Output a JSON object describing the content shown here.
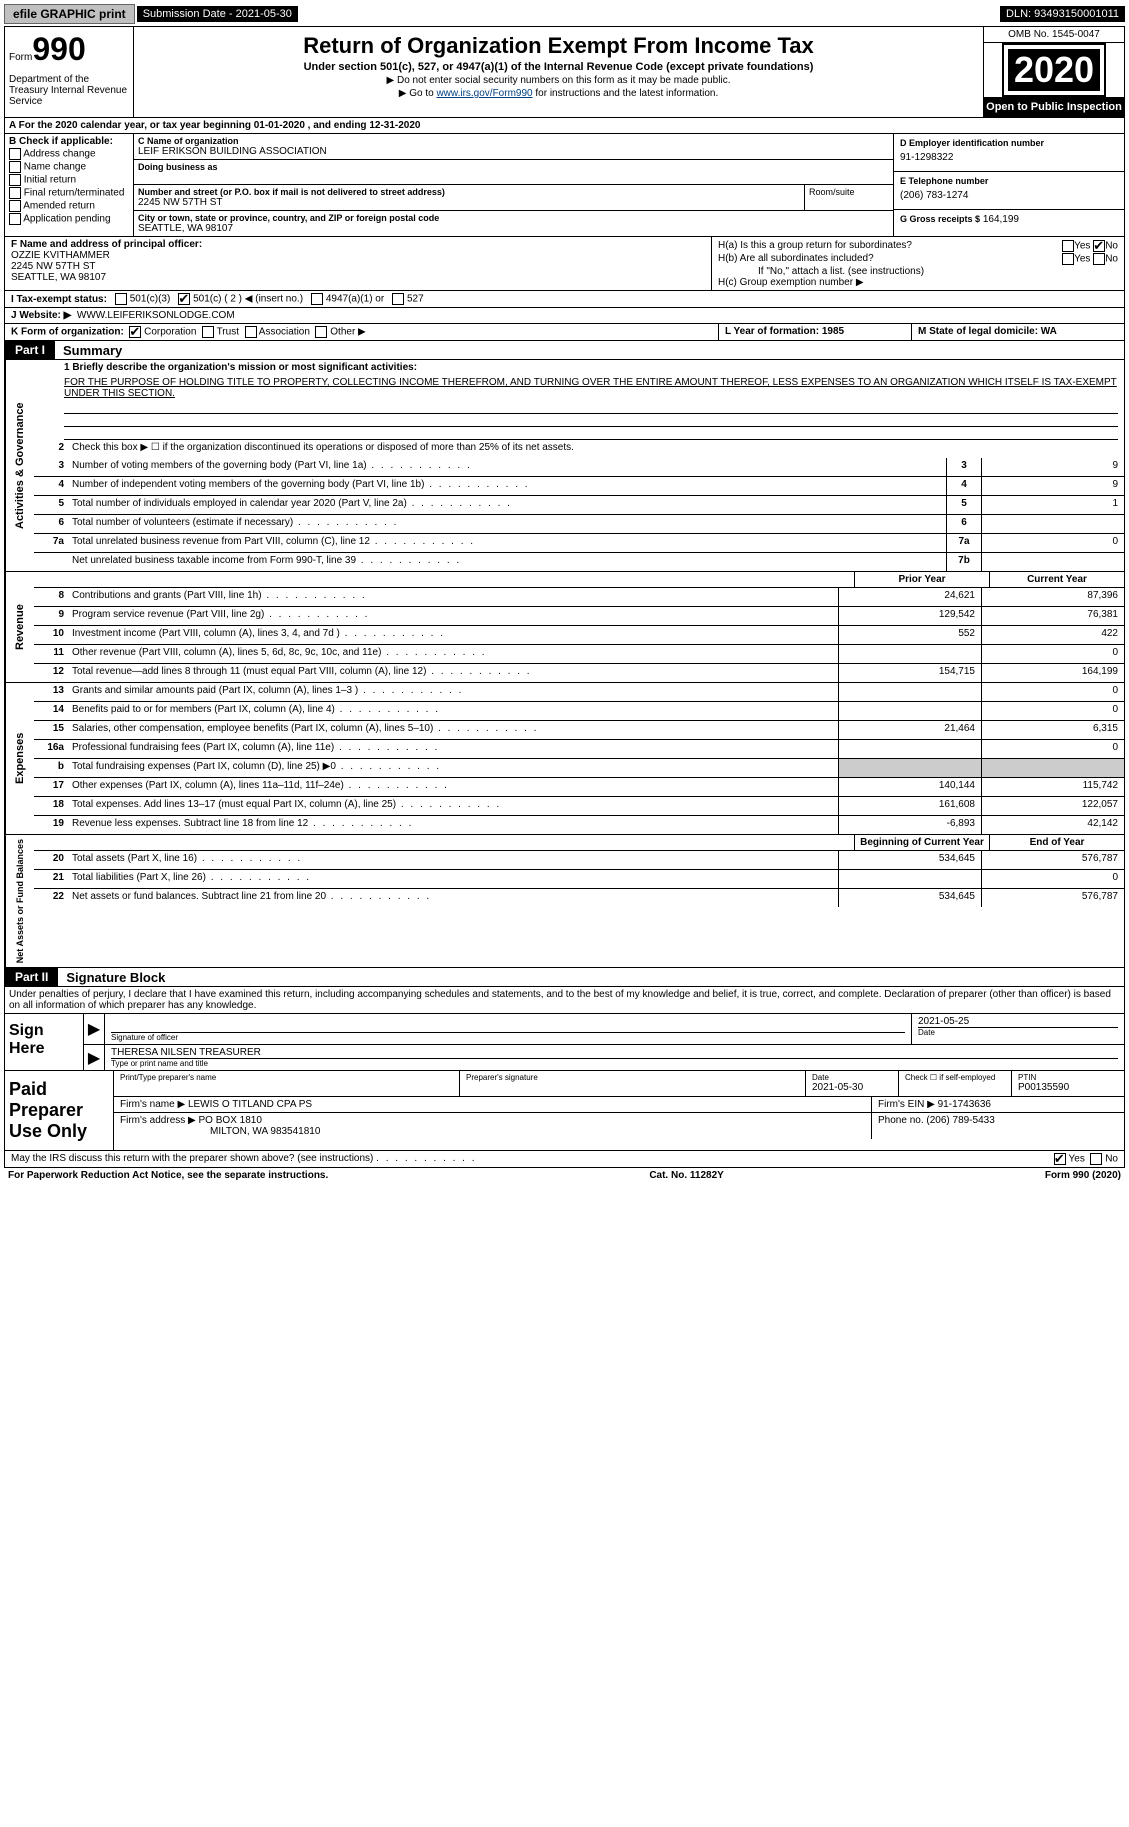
{
  "topbar": {
    "efile": "efile GRAPHIC print",
    "submission_label": "Submission Date - 2021-05-30",
    "dln": "DLN: 93493150001011"
  },
  "header": {
    "form_prefix": "Form",
    "form_number": "990",
    "dept": "Department of the Treasury\nInternal Revenue Service",
    "title": "Return of Organization Exempt From Income Tax",
    "subtitle": "Under section 501(c), 527, or 4947(a)(1) of the Internal Revenue Code (except private foundations)",
    "note1": "▶ Do not enter social security numbers on this form as it may be made public.",
    "note2_pre": "▶ Go to ",
    "note2_link": "www.irs.gov/Form990",
    "note2_post": " for instructions and the latest information.",
    "omb": "OMB No. 1545-0047",
    "year": "2020",
    "open_public": "Open to Public Inspection"
  },
  "section_a": "A For the 2020 calendar year, or tax year beginning 01-01-2020   , and ending 12-31-2020",
  "col_b": {
    "label": "B Check if applicable:",
    "items": [
      "Address change",
      "Name change",
      "Initial return",
      "Final return/terminated",
      "Amended return",
      "Application pending"
    ]
  },
  "col_c": {
    "name_lbl": "C Name of organization",
    "name": "LEIF ERIKSON BUILDING ASSOCIATION",
    "dba_lbl": "Doing business as",
    "street_lbl": "Number and street (or P.O. box if mail is not delivered to street address)",
    "street": "2245 NW 57TH ST",
    "room_lbl": "Room/suite",
    "city_lbl": "City or town, state or province, country, and ZIP or foreign postal code",
    "city": "SEATTLE, WA  98107"
  },
  "col_d": {
    "lbl": "D Employer identification number",
    "val": "91-1298322"
  },
  "col_e": {
    "lbl": "E Telephone number",
    "val": "(206) 783-1274"
  },
  "col_g": {
    "lbl": "G Gross receipts $",
    "val": "164,199"
  },
  "col_f": {
    "lbl": "F Name and address of principal officer:",
    "lines": [
      "OZZIE KVITHAMMER",
      "2245 NW 57TH ST",
      "SEATTLE, WA  98107"
    ]
  },
  "col_h": {
    "a": "H(a)  Is this a group return for subordinates?",
    "b": "H(b)  Are all subordinates included?",
    "b_note": "If \"No,\" attach a list. (see instructions)",
    "c": "H(c)  Group exemption number ▶"
  },
  "row_i": {
    "lbl": "I   Tax-exempt status:",
    "opts": [
      "501(c)(3)",
      "501(c) ( 2 ) ◀ (insert no.)",
      "4947(a)(1) or",
      "527"
    ]
  },
  "row_j": {
    "lbl": "J   Website: ▶",
    "val": "WWW.LEIFERIKSONLODGE.COM"
  },
  "row_k": {
    "lbl": "K Form of organization:",
    "opts": [
      "Corporation",
      "Trust",
      "Association",
      "Other ▶"
    ]
  },
  "row_l": "L Year of formation: 1985",
  "row_m": "M State of legal domicile: WA",
  "parts": {
    "p1": "Part I",
    "p1_title": "Summary",
    "p2": "Part II",
    "p2_title": "Signature Block"
  },
  "mission": {
    "lbl": "1   Briefly describe the organization's mission or most significant activities:",
    "text": "FOR THE PURPOSE OF HOLDING TITLE TO PROPERTY, COLLECTING INCOME THEREFROM, AND TURNING OVER THE ENTIRE AMOUNT THEREOF, LESS EXPENSES TO AN ORGANIZATION WHICH ITSELF IS TAX-EXEMPT UNDER THIS SECTION."
  },
  "line2": "Check this box ▶ ☐  if the organization discontinued its operations or disposed of more than 25% of its net assets.",
  "side_labels": {
    "gov": "Activities & Governance",
    "rev": "Revenue",
    "exp": "Expenses",
    "net": "Net Assets or Fund Balances"
  },
  "gov_lines": [
    {
      "n": "3",
      "d": "Number of voting members of the governing body (Part VI, line 1a)",
      "box": "3",
      "v": "9"
    },
    {
      "n": "4",
      "d": "Number of independent voting members of the governing body (Part VI, line 1b)",
      "box": "4",
      "v": "9"
    },
    {
      "n": "5",
      "d": "Total number of individuals employed in calendar year 2020 (Part V, line 2a)",
      "box": "5",
      "v": "1"
    },
    {
      "n": "6",
      "d": "Total number of volunteers (estimate if necessary)",
      "box": "6",
      "v": ""
    },
    {
      "n": "7a",
      "d": "Total unrelated business revenue from Part VIII, column (C), line 12",
      "box": "7a",
      "v": "0"
    },
    {
      "n": "",
      "d": "Net unrelated business taxable income from Form 990-T, line 39",
      "box": "7b",
      "v": ""
    }
  ],
  "col_hdr": {
    "py": "Prior Year",
    "cy": "Current Year",
    "by": "Beginning of Current Year",
    "ey": "End of Year"
  },
  "rev_lines": [
    {
      "n": "8",
      "d": "Contributions and grants (Part VIII, line 1h)",
      "py": "24,621",
      "cy": "87,396"
    },
    {
      "n": "9",
      "d": "Program service revenue (Part VIII, line 2g)",
      "py": "129,542",
      "cy": "76,381"
    },
    {
      "n": "10",
      "d": "Investment income (Part VIII, column (A), lines 3, 4, and 7d )",
      "py": "552",
      "cy": "422"
    },
    {
      "n": "11",
      "d": "Other revenue (Part VIII, column (A), lines 5, 6d, 8c, 9c, 10c, and 11e)",
      "py": "",
      "cy": "0"
    },
    {
      "n": "12",
      "d": "Total revenue—add lines 8 through 11 (must equal Part VIII, column (A), line 12)",
      "py": "154,715",
      "cy": "164,199"
    }
  ],
  "exp_lines": [
    {
      "n": "13",
      "d": "Grants and similar amounts paid (Part IX, column (A), lines 1–3 )",
      "py": "",
      "cy": "0"
    },
    {
      "n": "14",
      "d": "Benefits paid to or for members (Part IX, column (A), line 4)",
      "py": "",
      "cy": "0"
    },
    {
      "n": "15",
      "d": "Salaries, other compensation, employee benefits (Part IX, column (A), lines 5–10)",
      "py": "21,464",
      "cy": "6,315"
    },
    {
      "n": "16a",
      "d": "Professional fundraising fees (Part IX, column (A), line 11e)",
      "py": "",
      "cy": "0"
    },
    {
      "n": "b",
      "d": "Total fundraising expenses (Part IX, column (D), line 25) ▶0",
      "py": "SHADE",
      "cy": "SHADE"
    },
    {
      "n": "17",
      "d": "Other expenses (Part IX, column (A), lines 11a–11d, 11f–24e)",
      "py": "140,144",
      "cy": "115,742"
    },
    {
      "n": "18",
      "d": "Total expenses. Add lines 13–17 (must equal Part IX, column (A), line 25)",
      "py": "161,608",
      "cy": "122,057"
    },
    {
      "n": "19",
      "d": "Revenue less expenses. Subtract line 18 from line 12",
      "py": "-6,893",
      "cy": "42,142"
    }
  ],
  "net_lines": [
    {
      "n": "20",
      "d": "Total assets (Part X, line 16)",
      "py": "534,645",
      "cy": "576,787"
    },
    {
      "n": "21",
      "d": "Total liabilities (Part X, line 26)",
      "py": "",
      "cy": "0"
    },
    {
      "n": "22",
      "d": "Net assets or fund balances. Subtract line 21 from line 20",
      "py": "534,645",
      "cy": "576,787"
    }
  ],
  "sig_intro": "Under penalties of perjury, I declare that I have examined this return, including accompanying schedules and statements, and to the best of my knowledge and belief, it is true, correct, and complete. Declaration of preparer (other than officer) is based on all information of which preparer has any knowledge.",
  "sign": {
    "left": "Sign Here",
    "sig_lbl": "Signature of officer",
    "date": "2021-05-25",
    "date_lbl": "Date",
    "name": "THERESA NILSEN  TREASURER",
    "name_lbl": "Type or print name and title"
  },
  "prep": {
    "left": "Paid Preparer Use Only",
    "name_lbl": "Print/Type preparer's name",
    "sig_lbl": "Preparer's signature",
    "date_lbl": "Date",
    "date": "2021-05-30",
    "check_lbl": "Check ☐ if self-employed",
    "ptin_lbl": "PTIN",
    "ptin": "P00135590",
    "firm_name_lbl": "Firm's name    ▶",
    "firm_name": "LEWIS O TITLAND CPA PS",
    "firm_ein_lbl": "Firm's EIN ▶",
    "firm_ein": "91-1743636",
    "firm_addr_lbl": "Firm's address ▶",
    "firm_addr": "PO BOX 1810",
    "firm_addr2": "MILTON, WA  983541810",
    "phone_lbl": "Phone no.",
    "phone": "(206) 789-5433"
  },
  "discuss": "May the IRS discuss this return with the preparer shown above? (see instructions)",
  "footer": {
    "left": "For Paperwork Reduction Act Notice, see the separate instructions.",
    "mid": "Cat. No. 11282Y",
    "right": "Form 990 (2020)"
  },
  "yesno": {
    "yes": "Yes",
    "no": "No"
  }
}
